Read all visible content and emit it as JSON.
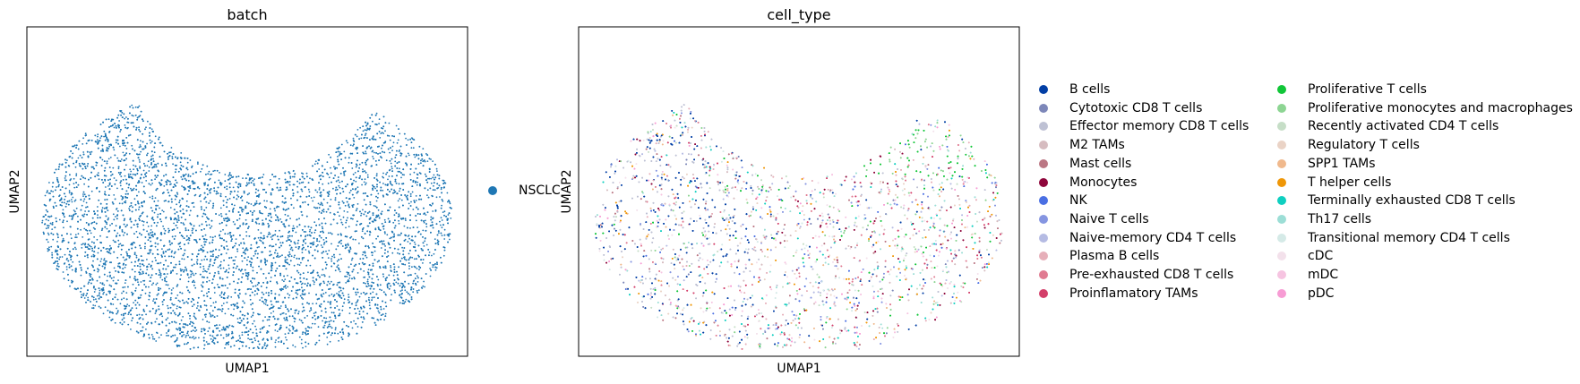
{
  "chart_data": [
    {
      "type": "scatter",
      "title": "batch",
      "xlabel": "UMAP1",
      "ylabel": "UMAP2",
      "grid": false,
      "legend_placement": "right",
      "series": [
        {
          "name": "NSCLC",
          "color": "#1f77b4"
        }
      ]
    },
    {
      "type": "scatter",
      "title": "cell_type",
      "xlabel": "UMAP1",
      "ylabel": "UMAP2",
      "grid": false,
      "legend_placement": "right",
      "series": [
        {
          "name": "B cells",
          "color": "#023fa5"
        },
        {
          "name": "Cytotoxic CD8 T cells",
          "color": "#7d87b9"
        },
        {
          "name": "Effector memory CD8 T cells",
          "color": "#bec1d4"
        },
        {
          "name": "M2 TAMs",
          "color": "#d6bcc0"
        },
        {
          "name": "Mast cells",
          "color": "#bb7784"
        },
        {
          "name": "Monocytes",
          "color": "#8e063b"
        },
        {
          "name": "NK",
          "color": "#4a6fe3"
        },
        {
          "name": "Naive T cells",
          "color": "#8595e1"
        },
        {
          "name": "Naive-memory CD4 T cells",
          "color": "#b5bbe3"
        },
        {
          "name": "Plasma B cells",
          "color": "#e6afb9"
        },
        {
          "name": "Pre-exhausted CD8 T cells",
          "color": "#e07b91"
        },
        {
          "name": "Proinflamatory TAMs",
          "color": "#d33f6a"
        },
        {
          "name": "Proliferative T cells",
          "color": "#11c638"
        },
        {
          "name": "Proliferative monocytes and macrophages",
          "color": "#8dd593"
        },
        {
          "name": "Recently activated CD4 T cells",
          "color": "#c6dec7"
        },
        {
          "name": "Regulatory T cells",
          "color": "#ead3c6"
        },
        {
          "name": "SPP1 TAMs",
          "color": "#f0b98d"
        },
        {
          "name": "T helper cells",
          "color": "#ef9708"
        },
        {
          "name": "Terminally exhausted CD8 T cells",
          "color": "#0fcfc0"
        },
        {
          "name": "Th17 cells",
          "color": "#9cded6"
        },
        {
          "name": "Transitional memory CD4 T cells",
          "color": "#d5eae7"
        },
        {
          "name": "cDC",
          "color": "#f3e1eb"
        },
        {
          "name": "mDC",
          "color": "#f6c4e1"
        },
        {
          "name": "pDC",
          "color": "#f79cd4"
        }
      ]
    }
  ]
}
